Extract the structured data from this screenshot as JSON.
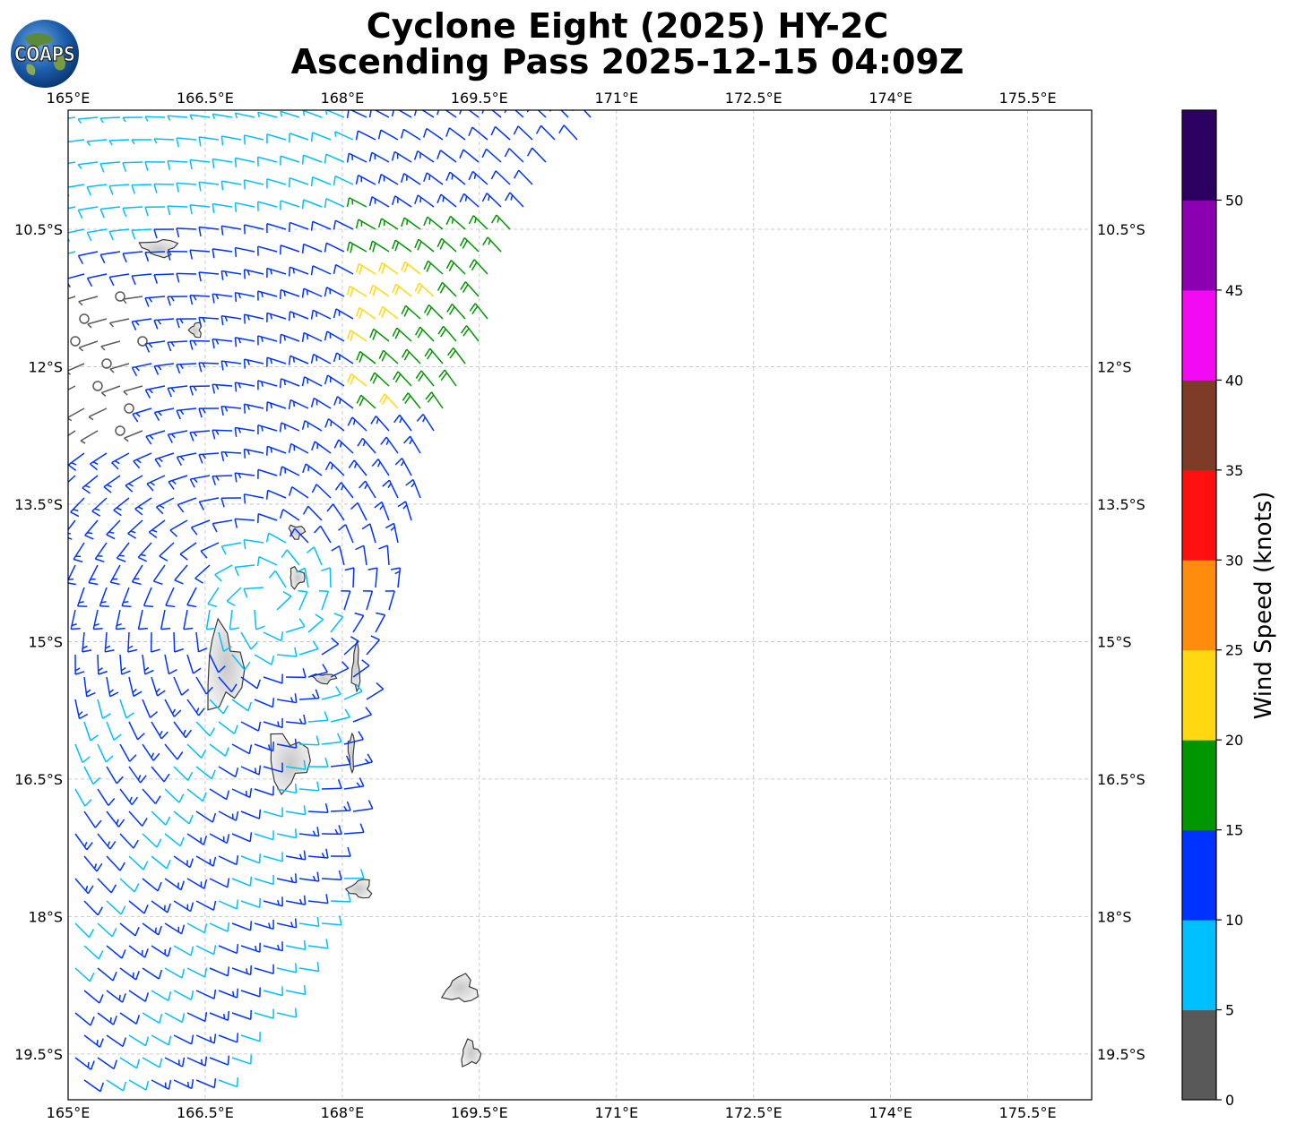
{
  "header": {
    "title_line1": "Cyclone Eight (2025) HY-2C",
    "title_line2": "Ascending Pass 2025-12-15 04:09Z",
    "logo_text": "COAPS"
  },
  "colorbar": {
    "label": "Wind Speed (knots)",
    "ticks": [
      "0",
      "5",
      "10",
      "15",
      "20",
      "25",
      "30",
      "35",
      "40",
      "45",
      "50"
    ],
    "bins": [
      {
        "min": 0,
        "max": 5,
        "color": "#595959"
      },
      {
        "min": 5,
        "max": 10,
        "color": "#00bfff"
      },
      {
        "min": 10,
        "max": 15,
        "color": "#0033ff"
      },
      {
        "min": 15,
        "max": 20,
        "color": "#009600"
      },
      {
        "min": 20,
        "max": 25,
        "color": "#ffd811"
      },
      {
        "min": 25,
        "max": 30,
        "color": "#ff8c0d"
      },
      {
        "min": 30,
        "max": 35,
        "color": "#ff1010"
      },
      {
        "min": 35,
        "max": 40,
        "color": "#7e3c27"
      },
      {
        "min": 40,
        "max": 45,
        "color": "#f20bf2"
      },
      {
        "min": 45,
        "max": 50,
        "color": "#8b00b0"
      },
      {
        "min": 50,
        "max": 55,
        "color": "#2b0060"
      }
    ]
  },
  "chart_data": {
    "type": "scatter",
    "xlim": [
      165,
      176.2
    ],
    "ylim": [
      -20,
      -9.2
    ],
    "grid": true,
    "x_ticks": [
      165,
      166.5,
      168,
      169.5,
      171,
      172.5,
      174,
      175.5
    ],
    "x_tick_labels": [
      "165°E",
      "166.5°E",
      "168°E",
      "169.5°E",
      "171°E",
      "172.5°E",
      "174°E",
      "175.5°E"
    ],
    "y_ticks": [
      -10.5,
      -12,
      -13.5,
      -15,
      -16.5,
      -18,
      -19.5
    ],
    "y_tick_labels": [
      "10.5°S",
      "12°S",
      "13.5°S",
      "15°S",
      "16.5°S",
      "18°S",
      "19.5°S"
    ],
    "swath_edge": [
      [
        166.6,
        -9.2
      ],
      [
        170.8,
        -9.2
      ],
      [
        170.3,
        -10.0
      ],
      [
        169.8,
        -11.0
      ],
      [
        169.2,
        -12.5
      ],
      [
        168.9,
        -13.5
      ],
      [
        168.3,
        -15.4
      ],
      [
        168.0,
        -18.0
      ],
      [
        167.0,
        -19.5
      ],
      [
        166.6,
        -20.0
      ],
      [
        165.0,
        -20.0
      ],
      [
        165.0,
        -9.2
      ]
    ],
    "wind_field": {
      "center_lon": 167.2,
      "center_lat": -14.6,
      "approx_max_speed_knots": 24,
      "calm_region": "northwest of swath near 165.5°E, 11.5°S",
      "strongest_band": "northeast sector 168.2–169.8°E, 10.5–12.5°S"
    },
    "islands": [
      {
        "lon": 166.7,
        "lat": -15.3
      },
      {
        "lon": 167.4,
        "lat": -16.3
      },
      {
        "lon": 167.8,
        "lat": -15.4
      },
      {
        "lon": 168.1,
        "lat": -16.2
      },
      {
        "lon": 168.2,
        "lat": -17.7
      },
      {
        "lon": 169.3,
        "lat": -18.8
      },
      {
        "lon": 169.4,
        "lat": -19.5
      },
      {
        "lon": 167.5,
        "lat": -14.3
      },
      {
        "lon": 167.5,
        "lat": -13.8
      },
      {
        "lon": 166.0,
        "lat": -10.7
      },
      {
        "lon": 166.4,
        "lat": -11.6
      },
      {
        "lon": 168.15,
        "lat": -15.3
      }
    ]
  }
}
